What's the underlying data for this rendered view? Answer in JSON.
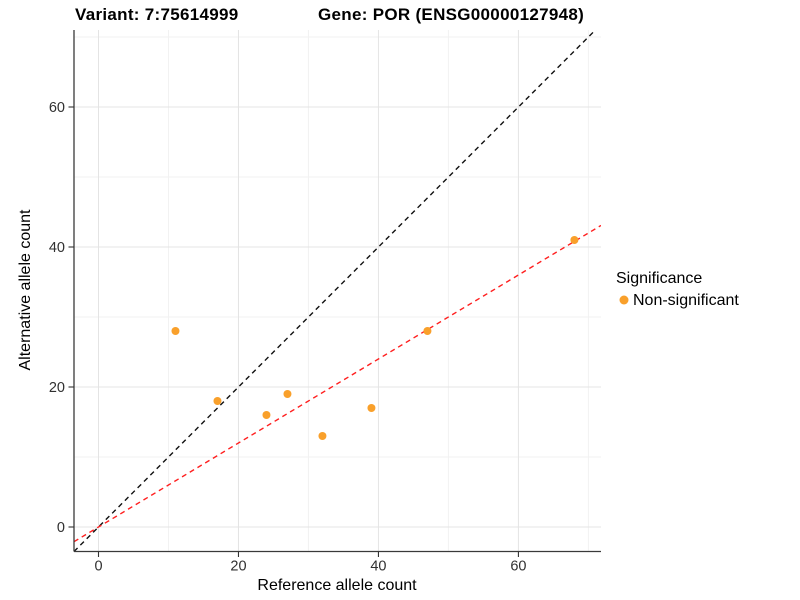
{
  "header": {
    "variant_title": "Variant: 7:75614999",
    "gene_title": "Gene: POR (ENSG00000127948)"
  },
  "legend": {
    "title": "Significance",
    "items": [
      {
        "label": "Non-significant",
        "color": "#F9A02B",
        "shape": "circle"
      }
    ]
  },
  "chart_data": {
    "type": "scatter",
    "title": "",
    "xlabel": "Reference allele count",
    "ylabel": "Alternative allele count",
    "xlim": [
      -3.5,
      71.8
    ],
    "ylim": [
      -3.5,
      71.0
    ],
    "x_major_ticks": [
      0,
      20,
      40,
      60
    ],
    "y_major_ticks": [
      0,
      20,
      40,
      60
    ],
    "x_minor_ticks": [
      10,
      30,
      50,
      70
    ],
    "y_minor_ticks": [
      10,
      30,
      50,
      70
    ],
    "grid": "major+minor",
    "legend_position": "right",
    "series": [
      {
        "name": "Non-significant",
        "color": "#F9A02B",
        "points": [
          [
            11,
            28
          ],
          [
            17,
            18
          ],
          [
            24,
            16
          ],
          [
            27,
            19
          ],
          [
            32,
            13
          ],
          [
            39,
            17
          ],
          [
            47,
            28
          ],
          [
            68,
            41
          ]
        ]
      }
    ],
    "reference_lines": [
      {
        "name": "identity",
        "slope": 1.0,
        "intercept": 0,
        "style": "dashed",
        "color": "#111111"
      },
      {
        "name": "fit",
        "slope": 0.6,
        "intercept": 0,
        "style": "dashed",
        "color": "#FF1F1F"
      }
    ],
    "colors": {
      "grid_major": "#E4E4E4",
      "grid_minor": "#F2F2F2",
      "axis_line": "#3A3A3A",
      "tick_mark": "#333333"
    }
  }
}
